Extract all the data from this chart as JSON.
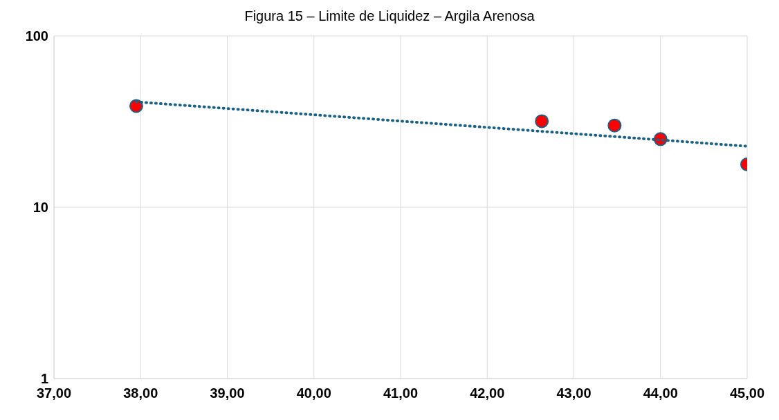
{
  "chart_data": {
    "type": "scatter",
    "title": "Figura 15 – Limite de Liquidez – Argila Arenosa",
    "series": [
      {
        "color": "#ff0000",
        "x": [
          37.95,
          42.63,
          43.47,
          44.0,
          45.0
        ],
        "values": [
          39,
          31.8,
          30,
          25,
          17.8
        ],
        "marker": "circle"
      },
      {
        "type": "line",
        "color": "#1b6183",
        "x": [
          37.95,
          45.0
        ],
        "values": [
          41.2,
          22.7
        ],
        "line_style": "dotted",
        "marker": "none"
      }
    ],
    "xlim": [
      37,
      45
    ],
    "xticks": [
      {
        "value": 37,
        "label": "37,00"
      },
      {
        "value": 38,
        "label": "38,00"
      },
      {
        "value": 39,
        "label": "39,00"
      },
      {
        "value": 40,
        "label": "40,00"
      },
      {
        "value": 41,
        "label": "41,00"
      },
      {
        "value": 42,
        "label": "42,00"
      },
      {
        "value": 43,
        "label": "43,00"
      },
      {
        "value": 44,
        "label": "44,00"
      },
      {
        "value": 45,
        "label": "45,00"
      }
    ],
    "ylim": [
      1,
      100
    ],
    "yticks": [
      1,
      10,
      100
    ],
    "log": "y",
    "grid": true
  }
}
